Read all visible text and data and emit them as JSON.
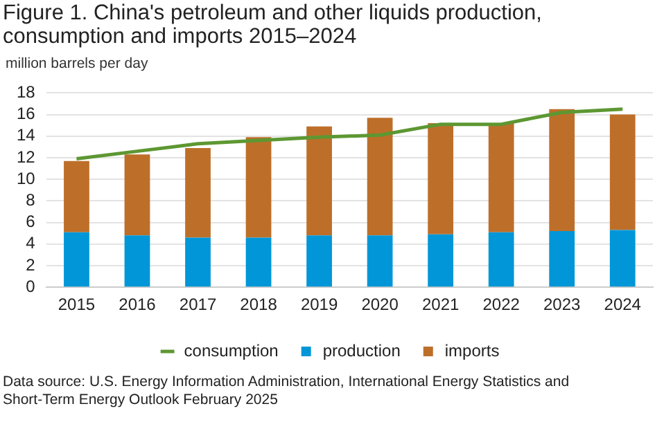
{
  "chart_data": {
    "type": "bar",
    "stacked": true,
    "title": "Figure 1. China's petroleum and other liquids production, consumption and imports 2015–2024",
    "ylabel": "million barrels per day",
    "categories": [
      "2015",
      "2016",
      "2017",
      "2018",
      "2019",
      "2020",
      "2021",
      "2022",
      "2023",
      "2024"
    ],
    "series": [
      {
        "name": "production",
        "color": "#0096d7",
        "values": [
          5.1,
          4.8,
          4.6,
          4.6,
          4.8,
          4.8,
          4.9,
          5.1,
          5.2,
          5.3
        ]
      },
      {
        "name": "imports",
        "color": "#bd6f2a",
        "values": [
          6.6,
          7.5,
          8.3,
          9.3,
          10.1,
          10.9,
          10.3,
          10.1,
          11.3,
          10.7
        ]
      },
      {
        "name": "consumption",
        "type": "line",
        "color": "#5d9732",
        "values": [
          11.9,
          12.6,
          13.3,
          13.6,
          13.9,
          14.1,
          15.1,
          15.1,
          16.2,
          16.5
        ]
      }
    ],
    "ylim": [
      0,
      18
    ],
    "yticks": [
      0,
      2,
      4,
      6,
      8,
      10,
      12,
      14,
      16,
      18
    ],
    "grid": "y",
    "legend": "bottom",
    "annotations": [
      "Data source: U.S. Energy Information Administration, International Energy Statistics and Short-Term Energy Outlook February 2025"
    ]
  }
}
